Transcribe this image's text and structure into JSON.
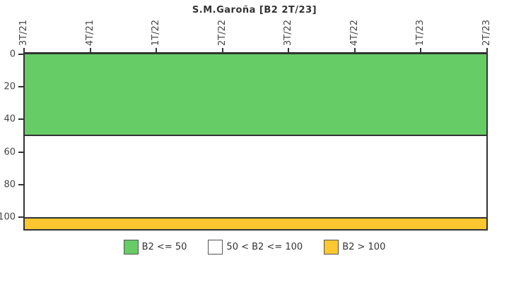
{
  "title": "S.M.Garoña [B2 2T/23]",
  "chart_data": {
    "type": "area",
    "title": "S.M.Garoña [B2 2T/23]",
    "x_tick_labels": [
      "3T/21",
      "4T/21",
      "1T/22",
      "2T/22",
      "3T/22",
      "4T/22",
      "1T/23",
      "2T/23"
    ],
    "x_tick_rotation": -90,
    "y_tick_values": [
      0,
      20,
      40,
      60,
      80,
      100
    ],
    "y_tick_labels": [
      "0",
      "20",
      "40",
      "60",
      "80",
      "100"
    ],
    "y_axis_inverted": true,
    "ylim": [
      0,
      107
    ],
    "grid": false,
    "series": [],
    "bands": [
      {
        "name": "B2 <= 50",
        "from": 0,
        "to": 50,
        "color": "#66CC66"
      },
      {
        "name": "50 < B2 <= 100",
        "from": 50,
        "to": 100,
        "color": "#FFFFFF"
      },
      {
        "name": "B2 > 100",
        "from": 100,
        "to": 107,
        "color": "#FDC72F"
      }
    ],
    "legend_position": "bottom"
  },
  "legend": {
    "items": [
      {
        "label": "B2 <= 50",
        "color": "#66CC66"
      },
      {
        "label": "50 < B2 <= 100",
        "color": "#FFFFFF"
      },
      {
        "label": "B2 > 100",
        "color": "#FDC72F"
      }
    ]
  },
  "colors": {
    "band_green": "#66CC66",
    "band_white": "#FFFFFF",
    "band_yellow": "#FDC72F",
    "axis": "#333333",
    "text": "#444444"
  }
}
